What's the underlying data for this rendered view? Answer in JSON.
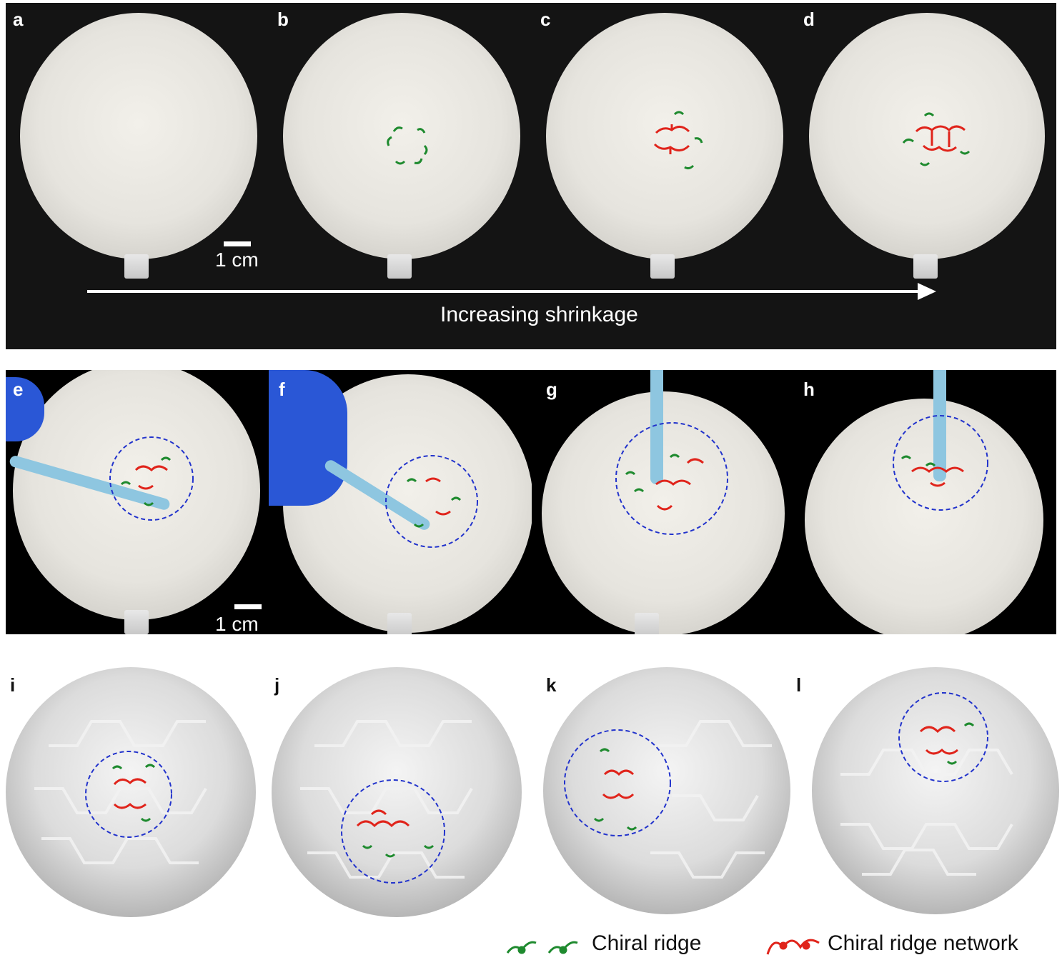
{
  "row1": {
    "panels": [
      "a",
      "b",
      "c",
      "d"
    ],
    "scale_label": "1 cm",
    "arrow_caption": "Increasing shrinkage"
  },
  "row2": {
    "panels": [
      "e",
      "f",
      "g",
      "h"
    ],
    "scale_label": "1 cm"
  },
  "row3": {
    "panels": [
      "i",
      "j",
      "k",
      "l"
    ]
  },
  "legend": {
    "chiral_ridge": "Chiral ridge",
    "chiral_ridge_network": "Chiral ridge network"
  },
  "colors": {
    "ridge": "#1e8a2e",
    "network": "#e0241b",
    "dashed_circle": "#2233cc"
  }
}
